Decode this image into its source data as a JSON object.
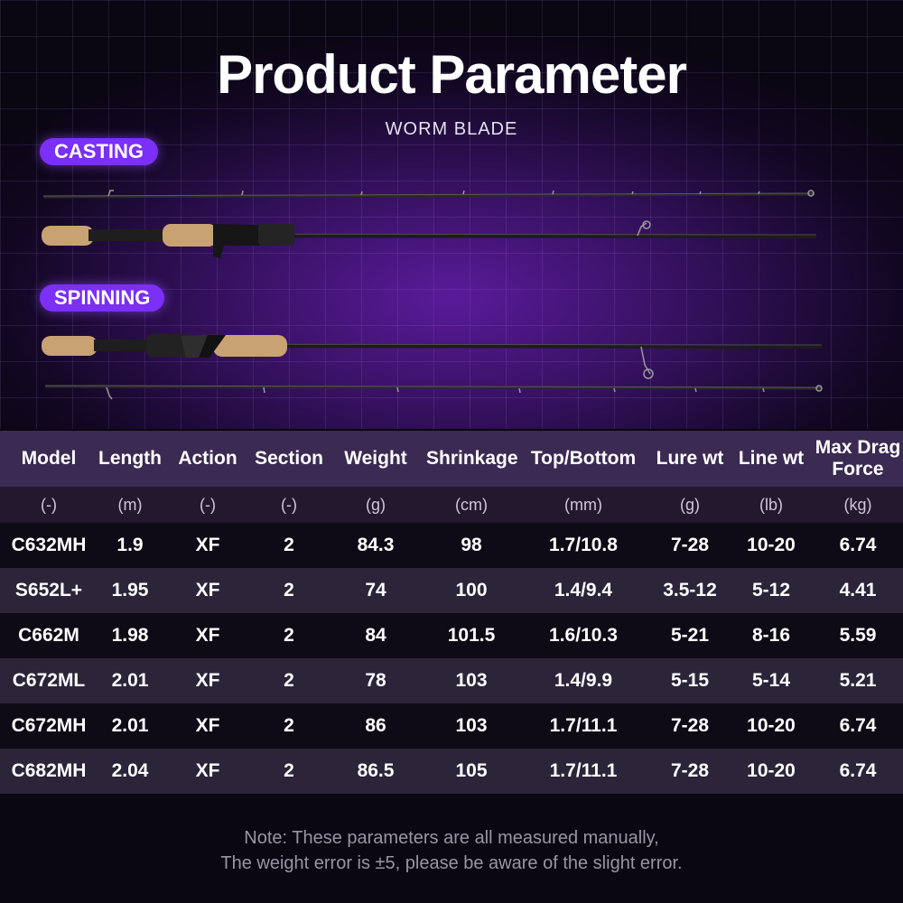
{
  "header": {
    "title": "Product Parameter",
    "subtitle": "WORM BLADE"
  },
  "tags": {
    "casting": "CASTING",
    "spinning": "SPINNING"
  },
  "table": {
    "headers": [
      "Model",
      "Length",
      "Action",
      "Section",
      "Weight",
      "Shrinkage",
      "Top/Bottom",
      "Lure wt",
      "Line wt",
      "Max Drag Force"
    ],
    "units": [
      "(-)",
      "(m)",
      "(-)",
      "(-)",
      "(g)",
      "(cm)",
      "(mm)",
      "(g)",
      "(lb)",
      "(kg)"
    ],
    "rows": [
      [
        "C632MH",
        "1.9",
        "XF",
        "2",
        "84.3",
        "98",
        "1.7/10.8",
        "7-28",
        "10-20",
        "6.74"
      ],
      [
        "S652L+",
        "1.95",
        "XF",
        "2",
        "74",
        "100",
        "1.4/9.4",
        "3.5-12",
        "5-12",
        "4.41"
      ],
      [
        "C662M",
        "1.98",
        "XF",
        "2",
        "84",
        "101.5",
        "1.6/10.3",
        "5-21",
        "8-16",
        "5.59"
      ],
      [
        "C672ML",
        "2.01",
        "XF",
        "2",
        "78",
        "103",
        "1.4/9.9",
        "5-15",
        "5-14",
        "5.21"
      ],
      [
        "C672MH",
        "2.01",
        "XF",
        "2",
        "86",
        "103",
        "1.7/11.1",
        "7-28",
        "10-20",
        "6.74"
      ],
      [
        "C682MH",
        "2.04",
        "XF",
        "2",
        "86.5",
        "105",
        "1.7/11.1",
        "7-28",
        "10-20",
        "6.74"
      ]
    ]
  },
  "note": {
    "line1": "Note: These parameters are all measured manually,",
    "line2": "The weight error is ±5, please be aware of the slight error."
  }
}
